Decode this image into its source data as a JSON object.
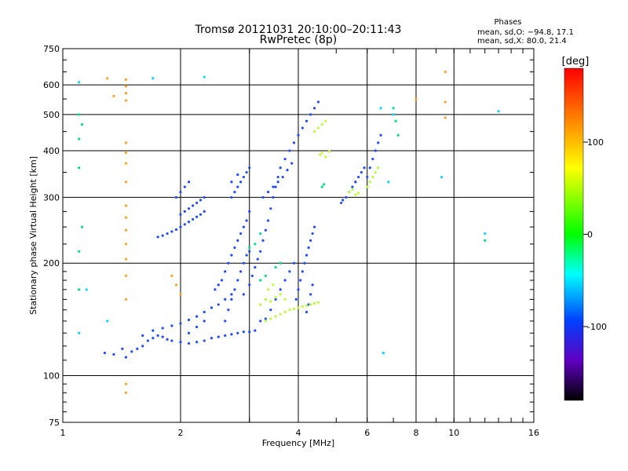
{
  "chart_data": {
    "type": "scatter",
    "title": "Tromsø 20121031 20:10:00–20:11:43",
    "subtitle": "RwPretec (8p)",
    "xlabel": "Frequency [MHz]",
    "ylabel": "Stationary phase Virtual Height [km]",
    "xscale": "log",
    "yscale": "log",
    "xlim": [
      1,
      16
    ],
    "ylim": [
      75,
      750
    ],
    "x_ticks": [
      1,
      2,
      4,
      8,
      16
    ],
    "x_minor_ticks": [
      3,
      5,
      6,
      7,
      9,
      10,
      11,
      12,
      13,
      14,
      15
    ],
    "x_minor_tick_labels": [
      "6",
      "10"
    ],
    "y_ticks": [
      75,
      100,
      200,
      300,
      400,
      500,
      600,
      750
    ],
    "grid": true,
    "phases_box": {
      "title": "Phases",
      "line_o": "mean, sd,O: −94.8, 17.1",
      "line_x": "mean, sd,X:  80.0, 21.4"
    },
    "colorbar": {
      "label": "[deg]",
      "range": [
        -180,
        180
      ],
      "ticks": [
        100,
        0,
        -100
      ],
      "colors": [
        "#ff0000",
        "#ff8000",
        "#ffff00",
        "#00ff00",
        "#00ffff",
        "#0040ff",
        "#6000c0",
        "#000000"
      ]
    },
    "series": [
      {
        "points": [
          [
            1.28,
            115
          ],
          [
            1.35,
            114
          ],
          [
            1.42,
            118
          ],
          [
            1.5,
            116
          ],
          [
            1.45,
            112
          ],
          [
            1.55,
            118
          ],
          [
            1.6,
            120
          ],
          [
            1.65,
            124
          ],
          [
            1.7,
            126
          ],
          [
            1.75,
            128
          ],
          [
            1.8,
            127
          ],
          [
            1.85,
            125
          ],
          [
            1.9,
            124
          ],
          [
            2.0,
            123
          ],
          [
            2.1,
            122
          ],
          [
            2.2,
            123
          ],
          [
            2.3,
            124
          ],
          [
            2.4,
            126
          ],
          [
            2.5,
            127
          ],
          [
            2.6,
            128
          ],
          [
            2.7,
            129
          ],
          [
            2.8,
            130
          ],
          [
            2.9,
            131
          ],
          [
            3.0,
            131
          ],
          [
            3.1,
            132
          ],
          [
            1.6,
            128
          ],
          [
            1.7,
            132
          ],
          [
            1.8,
            134
          ],
          [
            1.9,
            136
          ],
          [
            2.0,
            138
          ],
          [
            2.1,
            141
          ],
          [
            2.2,
            144
          ],
          [
            2.3,
            148
          ],
          [
            2.4,
            152
          ],
          [
            2.5,
            155
          ],
          [
            2.6,
            160
          ],
          [
            2.7,
            165
          ],
          [
            2.1,
            130
          ],
          [
            2.2,
            135
          ],
          [
            2.3,
            140
          ],
          [
            2.45,
            170
          ],
          [
            2.5,
            175
          ],
          [
            2.55,
            180
          ],
          [
            2.6,
            190
          ],
          [
            2.65,
            200
          ],
          [
            2.7,
            210
          ],
          [
            2.75,
            220
          ],
          [
            2.8,
            230
          ],
          [
            2.85,
            240
          ],
          [
            2.9,
            250
          ],
          [
            2.95,
            260
          ],
          [
            3.0,
            275
          ],
          [
            2.6,
            140
          ],
          [
            2.65,
            150
          ],
          [
            2.7,
            160
          ],
          [
            2.75,
            170
          ],
          [
            2.8,
            180
          ],
          [
            2.85,
            190
          ],
          [
            2.9,
            200
          ],
          [
            2.95,
            210
          ],
          [
            3.0,
            215
          ],
          [
            2.9,
            165
          ],
          [
            3.0,
            175
          ],
          [
            3.05,
            185
          ],
          [
            3.1,
            195
          ],
          [
            3.15,
            205
          ],
          [
            3.2,
            215
          ],
          [
            3.25,
            230
          ],
          [
            3.3,
            245
          ],
          [
            3.35,
            260
          ],
          [
            3.4,
            280
          ],
          [
            3.45,
            300
          ],
          [
            3.5,
            320
          ],
          [
            3.55,
            340
          ],
          [
            3.6,
            360
          ],
          [
            3.7,
            380
          ],
          [
            3.8,
            400
          ],
          [
            3.9,
            420
          ],
          [
            4.0,
            440
          ],
          [
            4.1,
            460
          ],
          [
            4.2,
            480
          ],
          [
            4.3,
            500
          ],
          [
            4.4,
            520
          ],
          [
            4.5,
            540
          ],
          [
            3.25,
            300
          ],
          [
            3.35,
            310
          ],
          [
            3.45,
            320
          ],
          [
            3.55,
            330
          ],
          [
            3.65,
            340
          ],
          [
            3.75,
            355
          ],
          [
            3.85,
            370
          ],
          [
            3.2,
            140
          ],
          [
            3.3,
            142
          ],
          [
            3.4,
            150
          ],
          [
            3.5,
            160
          ],
          [
            3.6,
            170
          ],
          [
            3.7,
            180
          ],
          [
            3.8,
            190
          ],
          [
            3.9,
            200
          ],
          [
            3.95,
            160
          ],
          [
            4.0,
            170
          ],
          [
            4.05,
            180
          ],
          [
            4.1,
            190
          ],
          [
            4.15,
            200
          ],
          [
            4.2,
            210
          ],
          [
            4.25,
            220
          ],
          [
            4.3,
            230
          ],
          [
            4.35,
            240
          ],
          [
            4.4,
            250
          ],
          [
            4.35,
            175
          ],
          [
            4.3,
            165
          ],
          [
            4.25,
            155
          ],
          [
            4.2,
            148
          ],
          [
            1.75,
            235
          ],
          [
            1.8,
            237
          ],
          [
            1.85,
            240
          ],
          [
            1.9,
            243
          ],
          [
            1.95,
            246
          ],
          [
            2.0,
            250
          ],
          [
            2.05,
            254
          ],
          [
            2.1,
            258
          ],
          [
            2.15,
            262
          ],
          [
            2.2,
            266
          ],
          [
            2.25,
            270
          ],
          [
            2.3,
            275
          ],
          [
            2.0,
            270
          ],
          [
            2.05,
            275
          ],
          [
            2.1,
            280
          ],
          [
            2.15,
            285
          ],
          [
            2.2,
            290
          ],
          [
            2.25,
            295
          ],
          [
            2.3,
            300
          ],
          [
            1.95,
            300
          ],
          [
            2.0,
            310
          ],
          [
            2.05,
            320
          ],
          [
            2.1,
            330
          ],
          [
            2.7,
            300
          ],
          [
            2.75,
            310
          ],
          [
            2.8,
            320
          ],
          [
            2.85,
            330
          ],
          [
            2.9,
            340
          ],
          [
            2.95,
            350
          ],
          [
            3.0,
            360
          ],
          [
            2.7,
            330
          ],
          [
            2.8,
            345
          ],
          [
            5.15,
            290
          ],
          [
            5.2,
            295
          ],
          [
            5.3,
            300
          ],
          [
            5.4,
            310
          ],
          [
            5.5,
            320
          ],
          [
            5.6,
            330
          ],
          [
            6.0,
            340
          ],
          [
            6.1,
            360
          ],
          [
            6.2,
            380
          ],
          [
            6.3,
            400
          ],
          [
            6.4,
            420
          ],
          [
            6.5,
            440
          ],
          [
            5.6,
            330
          ],
          [
            5.7,
            340
          ],
          [
            5.8,
            350
          ],
          [
            5.9,
            360
          ]
        ]
      },
      {
        "points": [
          [
            3.3,
            140
          ],
          [
            3.4,
            142
          ],
          [
            3.5,
            144
          ],
          [
            3.6,
            146
          ],
          [
            3.7,
            148
          ],
          [
            3.8,
            150
          ],
          [
            3.9,
            151
          ],
          [
            4.0,
            152
          ],
          [
            4.1,
            153
          ],
          [
            4.2,
            154
          ],
          [
            4.3,
            155
          ],
          [
            4.4,
            156
          ],
          [
            4.5,
            157
          ],
          [
            3.2,
            155
          ],
          [
            3.3,
            160
          ],
          [
            3.4,
            158
          ],
          [
            3.5,
            162
          ],
          [
            3.6,
            165
          ],
          [
            3.7,
            160
          ],
          [
            3.35,
            170
          ],
          [
            3.45,
            175
          ],
          [
            4.55,
            390
          ],
          [
            4.6,
            395
          ],
          [
            4.7,
            385
          ],
          [
            4.8,
            398
          ],
          [
            5.4,
            310
          ],
          [
            5.5,
            315
          ],
          [
            5.6,
            305
          ],
          [
            5.7,
            308
          ],
          [
            6.0,
            320
          ],
          [
            6.1,
            330
          ],
          [
            6.2,
            340
          ],
          [
            6.3,
            350
          ],
          [
            6.4,
            360
          ],
          [
            4.4,
            450
          ],
          [
            4.5,
            460
          ],
          [
            4.6,
            470
          ],
          [
            4.7,
            480
          ]
        ]
      },
      {
        "points": [
          [
            1.1,
            500
          ],
          [
            1.12,
            470
          ],
          [
            1.1,
            430
          ],
          [
            1.1,
            360
          ],
          [
            1.12,
            250
          ],
          [
            1.1,
            215
          ],
          [
            1.1,
            170
          ],
          [
            7.0,
            520
          ],
          [
            7.1,
            480
          ],
          [
            7.2,
            440
          ],
          [
            12.0,
            230
          ],
          [
            3.2,
            180
          ],
          [
            3.3,
            185
          ],
          [
            3.0,
            220
          ],
          [
            3.1,
            225
          ],
          [
            3.2,
            240
          ],
          [
            3.5,
            195
          ],
          [
            3.6,
            200
          ],
          [
            4.6,
            320
          ],
          [
            4.65,
            325
          ]
        ]
      },
      {
        "points": [
          [
            1.45,
            620
          ],
          [
            1.45,
            595
          ],
          [
            1.45,
            570
          ],
          [
            1.45,
            545
          ],
          [
            1.45,
            420
          ],
          [
            1.45,
            395
          ],
          [
            1.45,
            370
          ],
          [
            1.45,
            330
          ],
          [
            1.45,
            285
          ],
          [
            1.45,
            265
          ],
          [
            1.45,
            245
          ],
          [
            1.45,
            225
          ],
          [
            1.45,
            205
          ],
          [
            1.45,
            185
          ],
          [
            1.45,
            160
          ],
          [
            1.45,
            90
          ],
          [
            1.45,
            95
          ],
          [
            9.5,
            650
          ],
          [
            9.5,
            540
          ],
          [
            9.5,
            490
          ],
          [
            8.0,
            550
          ],
          [
            1.3,
            625
          ],
          [
            1.35,
            560
          ],
          [
            1.9,
            185
          ],
          [
            1.95,
            175
          ],
          [
            2.0,
            165
          ]
        ]
      },
      {
        "points": [
          [
            1.7,
            625
          ],
          [
            2.3,
            630
          ],
          [
            1.1,
            610
          ],
          [
            1.3,
            140
          ],
          [
            1.15,
            170
          ],
          [
            1.1,
            130
          ],
          [
            7.0,
            500
          ],
          [
            6.5,
            520
          ],
          [
            6.8,
            330
          ],
          [
            9.3,
            340
          ],
          [
            12.0,
            240
          ],
          [
            13.0,
            510
          ],
          [
            6.6,
            115
          ]
        ]
      }
    ]
  }
}
